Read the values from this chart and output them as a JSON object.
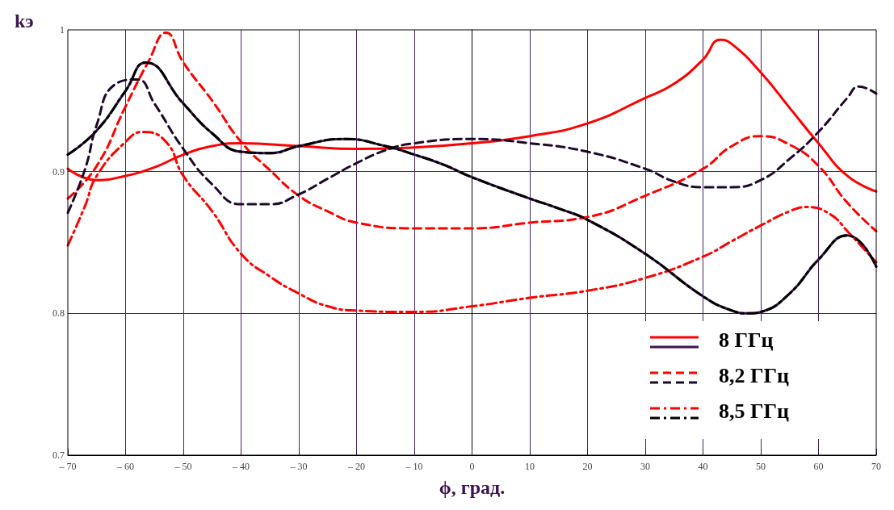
{
  "chart_data": {
    "type": "line",
    "xlabel": "ϕ, град.",
    "ylabel": "kэ",
    "xlim": [
      -70,
      70
    ],
    "ylim": [
      0.7,
      1
    ],
    "xticks": [
      {
        "value": -70,
        "label": "– 70"
      },
      {
        "value": -60,
        "label": "– 60"
      },
      {
        "value": -50,
        "label": "– 50"
      },
      {
        "value": -40,
        "label": "– 40"
      },
      {
        "value": -30,
        "label": "– 30"
      },
      {
        "value": -20,
        "label": "– 20"
      },
      {
        "value": -10,
        "label": "– 10"
      },
      0,
      10,
      20,
      30,
      40,
      50,
      60,
      70
    ],
    "yticks": [
      0.7,
      0.8,
      0.9,
      1
    ],
    "grid": true,
    "legend": "bottom right",
    "marker": "none",
    "series": [
      {
        "name": "8 ГГц",
        "color": "#ff0000",
        "line_style": "solid",
        "x": [
          -70,
          -65,
          -60,
          -55,
          -50,
          -45,
          -40,
          -30,
          -20,
          -10,
          0,
          10,
          20,
          30,
          35,
          40,
          43,
          45,
          50,
          55,
          60,
          65,
          70
        ],
        "values": [
          0.902,
          0.894,
          0.897,
          0.903,
          0.912,
          0.918,
          0.92,
          0.918,
          0.916,
          0.917,
          0.92,
          0.925,
          0.934,
          0.952,
          0.962,
          0.979,
          0.993,
          0.99,
          0.97,
          0.945,
          0.92,
          0.897,
          0.886
        ]
      },
      {
        "color": "#3c1450",
        "line_style": "solid",
        "x": [
          -70,
          -65,
          -60,
          -56.5,
          -50,
          -45,
          -40,
          -35,
          -30,
          -22,
          -15,
          -10,
          -5,
          0,
          10,
          15,
          20,
          30,
          40,
          45,
          48,
          50,
          55,
          60,
          65,
          70
        ],
        "values": [
          0.912,
          0.929,
          0.957,
          0.977,
          0.948,
          0.927,
          0.914,
          0.913,
          0.918,
          0.923,
          0.918,
          0.912,
          0.905,
          0.896,
          0.881,
          0.874,
          0.866,
          0.842,
          0.812,
          0.802,
          0.8,
          0.801,
          0.814,
          0.838,
          0.855,
          0.833
        ]
      },
      {
        "name": "8,2 ГГц",
        "color": "#ff0000",
        "line_style": "dashed",
        "x": [
          -70,
          -65,
          -60,
          -56,
          -53,
          -50,
          -45,
          -40,
          -35,
          -30,
          -25,
          -20,
          -10,
          0,
          10,
          20,
          30,
          40,
          45,
          50,
          55,
          60,
          65,
          70
        ],
        "values": [
          0.881,
          0.904,
          0.946,
          0.978,
          0.998,
          0.977,
          0.95,
          0.921,
          0.901,
          0.883,
          0.872,
          0.864,
          0.86,
          0.86,
          0.864,
          0.868,
          0.883,
          0.902,
          0.918,
          0.925,
          0.919,
          0.904,
          0.878,
          0.858
        ]
      },
      {
        "color": "#1e0a28",
        "line_style": "dashed",
        "x": [
          -70,
          -67,
          -65,
          -62,
          -58,
          -55,
          -50,
          -45,
          -40,
          -35,
          -30,
          -25,
          -20,
          -15,
          -10,
          0,
          10,
          20,
          30,
          35,
          40,
          45,
          50,
          55,
          60,
          65,
          67,
          70
        ],
        "values": [
          0.871,
          0.902,
          0.933,
          0.961,
          0.965,
          0.948,
          0.916,
          0.891,
          0.877,
          0.877,
          0.884,
          0.895,
          0.906,
          0.915,
          0.92,
          0.923,
          0.92,
          0.914,
          0.902,
          0.893,
          0.889,
          0.889,
          0.894,
          0.909,
          0.928,
          0.952,
          0.96,
          0.955
        ]
      },
      {
        "name": "8,5 ГГц",
        "color": "#ff0000",
        "line_style": "dashdot",
        "x": [
          -70,
          -67,
          -65,
          -60,
          -57,
          -53,
          -50,
          -45,
          -40,
          -35,
          -30,
          -25,
          -20,
          -10,
          0,
          10,
          20,
          30,
          40,
          45,
          50,
          55,
          58,
          62,
          65,
          70
        ],
        "values": [
          0.848,
          0.876,
          0.897,
          0.921,
          0.928,
          0.921,
          0.897,
          0.872,
          0.842,
          0.826,
          0.814,
          0.805,
          0.802,
          0.801,
          0.805,
          0.811,
          0.816,
          0.825,
          0.84,
          0.851,
          0.862,
          0.872,
          0.875,
          0.87,
          0.858,
          0.836
        ]
      },
      {
        "color": "#000000",
        "line_style": "dashdot",
        "x": [
          -70,
          -65,
          -60,
          -56.5,
          -50,
          -45,
          -40,
          -35,
          -30,
          -22,
          -15,
          -10,
          -5,
          0,
          10,
          15,
          20,
          30,
          40,
          45,
          48,
          50,
          55,
          60,
          65,
          70
        ],
        "values": [
          0.912,
          0.929,
          0.957,
          0.977,
          0.948,
          0.927,
          0.914,
          0.913,
          0.918,
          0.923,
          0.918,
          0.912,
          0.905,
          0.896,
          0.881,
          0.874,
          0.866,
          0.842,
          0.812,
          0.802,
          0.8,
          0.801,
          0.814,
          0.838,
          0.855,
          0.833
        ]
      }
    ]
  }
}
